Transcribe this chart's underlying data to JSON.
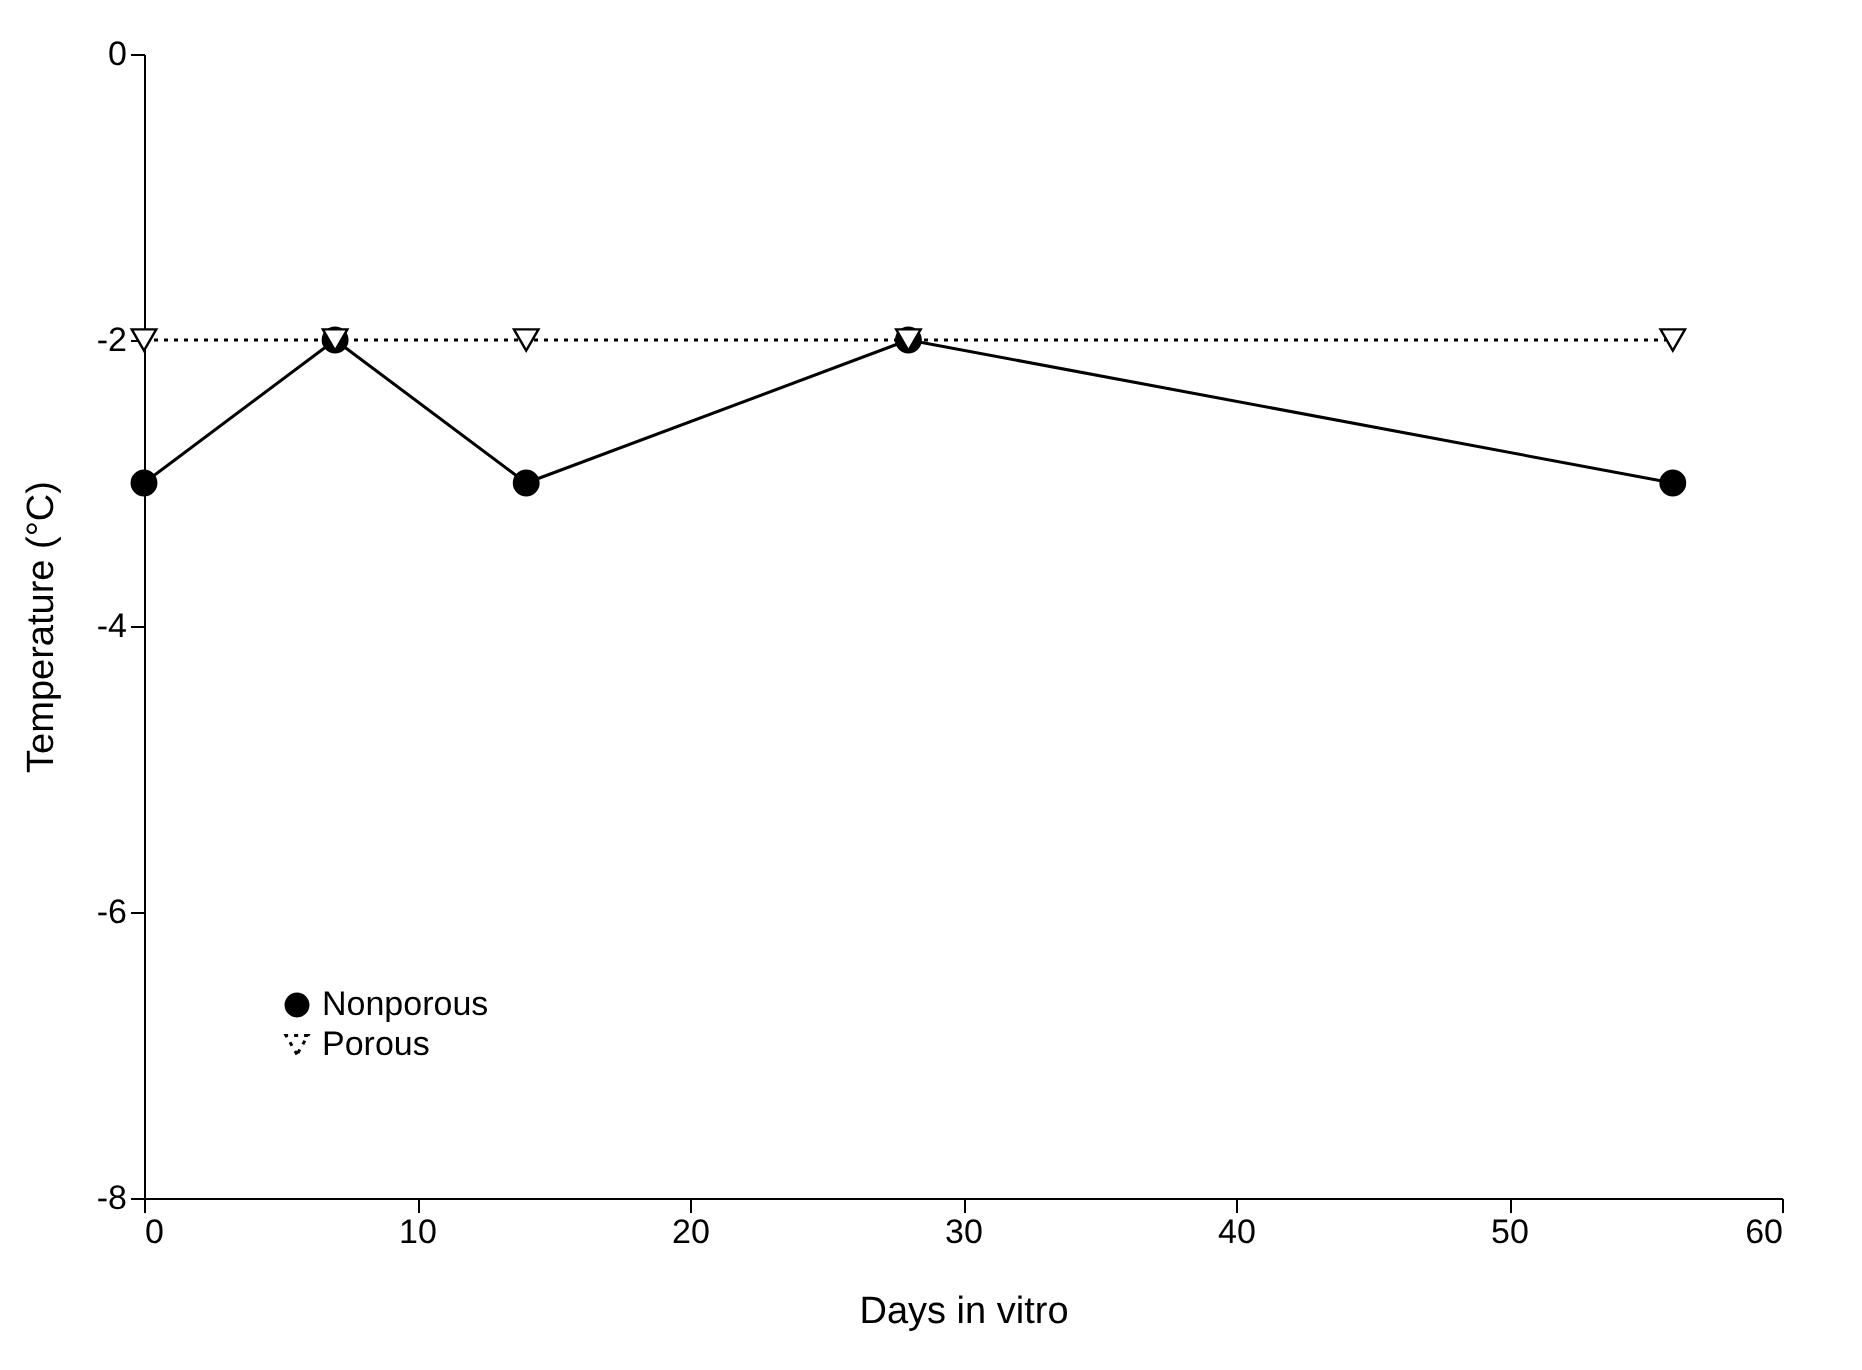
{
  "chart_data": {
    "type": "line",
    "xlabel": "Days in vitro",
    "ylabel": "Temperature (°C)",
    "xlim": [
      0,
      60
    ],
    "xticks": [
      0,
      10,
      20,
      30,
      40,
      50,
      60
    ],
    "ylim": [
      -8,
      0
    ],
    "yticks": [
      -8,
      -6,
      -4,
      -2,
      0
    ],
    "grid": false,
    "legend": "bottom left",
    "series": [
      {
        "name": "Nonporous",
        "color": "#000000",
        "x": [
          0,
          7,
          14,
          28,
          56
        ],
        "values": [
          -3,
          -2,
          -3,
          -2,
          -3
        ],
        "marker": "circle",
        "line_style": "solid"
      },
      {
        "name": "Porous",
        "color": "#000000",
        "x": [
          0,
          7,
          14,
          28,
          56
        ],
        "values": [
          -2,
          -2,
          -2,
          -2,
          -2
        ],
        "marker": "triangle-down",
        "line_style": "dotted"
      }
    ]
  }
}
